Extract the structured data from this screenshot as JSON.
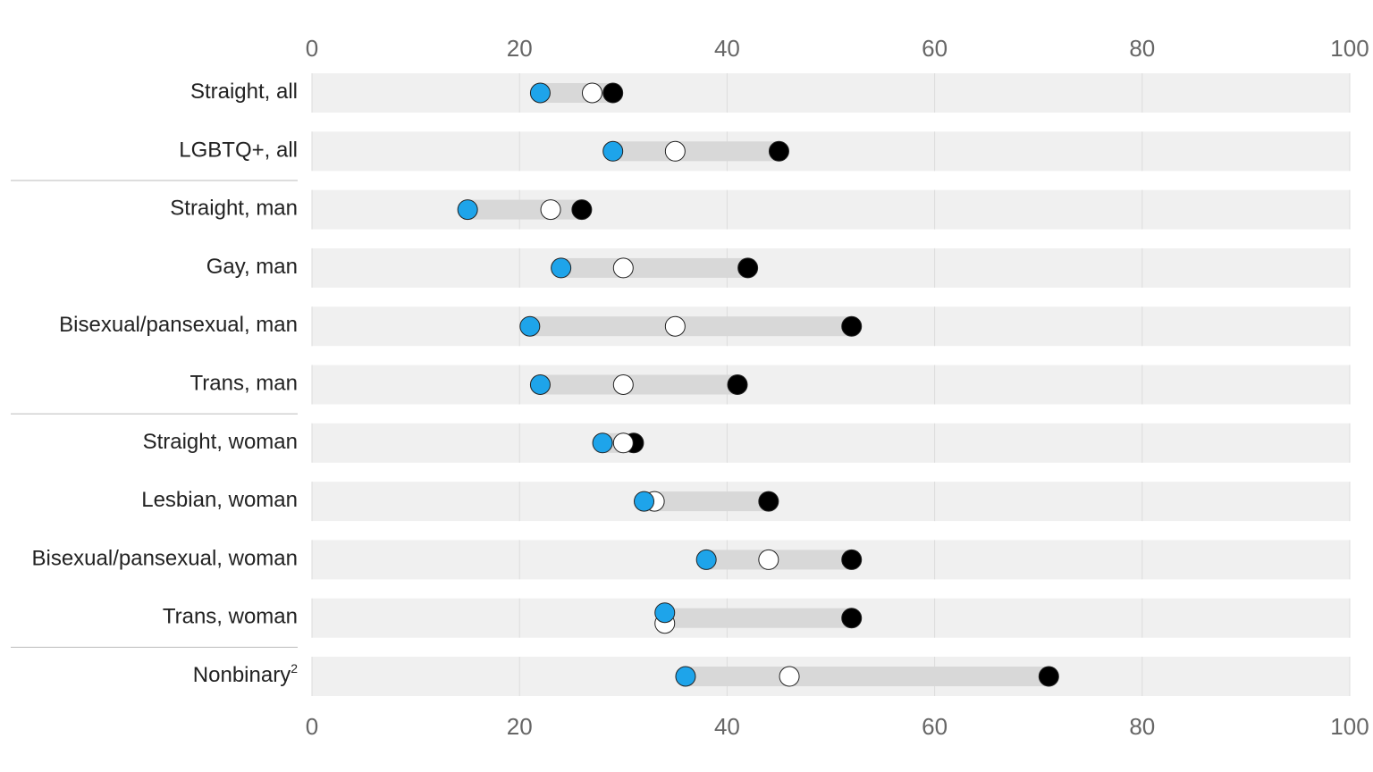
{
  "chart_data": {
    "type": "dot-range",
    "categories": [
      "Straight, all",
      "LGBTQ+, all",
      "Straight, man",
      "Gay, man",
      "Bisexual/pansexual, man",
      "Trans, man",
      "Straight, woman",
      "Lesbian, woman",
      "Bisexual/pansexual, woman",
      "Trans, woman",
      "Nonbinary"
    ],
    "category_superscripts": [
      null,
      null,
      null,
      null,
      null,
      null,
      null,
      null,
      null,
      null,
      "2"
    ],
    "series": [
      {
        "color": "#1ea4ea",
        "values": [
          22,
          29,
          15,
          24,
          21,
          22,
          28,
          32,
          38,
          34,
          36
        ]
      },
      {
        "color": "#ffffff",
        "values": [
          27,
          35,
          23,
          30,
          35,
          30,
          30,
          33,
          44,
          34,
          46
        ]
      },
      {
        "color": "#000000",
        "values": [
          29,
          45,
          26,
          42,
          52,
          41,
          31,
          44,
          52,
          52,
          71
        ]
      }
    ],
    "xlim": [
      0,
      100
    ],
    "xticks": [
      0,
      20,
      40,
      60,
      80,
      100
    ],
    "grid": true
  }
}
